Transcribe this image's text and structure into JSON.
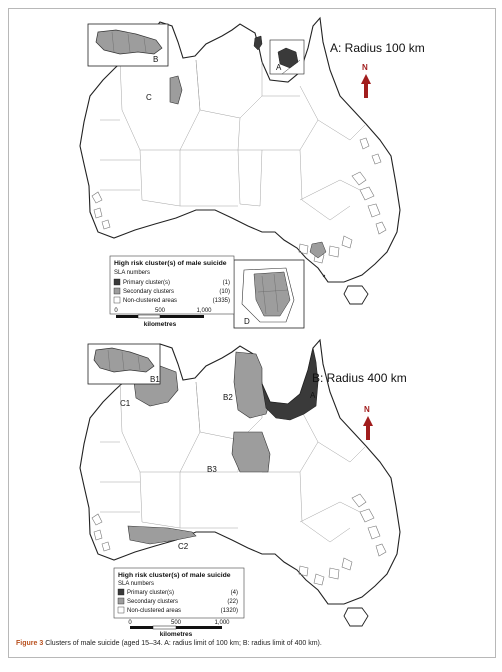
{
  "colors": {
    "primary": "#3a3a3a",
    "secondary": "#9d9d9d",
    "non_clustered": "#ffffff",
    "north_arrow": "#a11d1d",
    "caption_label": "#b8501e",
    "outline": "#333333"
  },
  "caption": {
    "label": "Figure 3",
    "text": "Clusters of male suicide (aged 15–34. A: radius limit of 100 km; B: radius limit of 400 km)."
  },
  "north_label": "N",
  "panels": [
    {
      "title": "A: Radius 100 km",
      "inset_labels": [
        "A",
        "B",
        "C",
        "D"
      ],
      "legend": {
        "title": "High risk cluster(s) of male suicide",
        "subtitle": "SLA numbers",
        "items": [
          {
            "label": "Primary cluster(s)",
            "count": "(1)",
            "swatch": "primary"
          },
          {
            "label": "Secondary clusters",
            "count": "(10)",
            "swatch": "secondary"
          },
          {
            "label": "Non-clustered areas",
            "count": "(1335)",
            "swatch": "non_clustered"
          }
        ]
      },
      "scale": {
        "ticks": [
          "0",
          "500",
          "1,000"
        ],
        "unit": "kilometres"
      }
    },
    {
      "title": "B: Radius 400 km",
      "inset_labels": [
        "A",
        "B1",
        "B2",
        "B3",
        "C1",
        "C2"
      ],
      "legend": {
        "title": "High risk cluster(s) of male suicide",
        "subtitle": "SLA numbers",
        "items": [
          {
            "label": "Primary cluster(s)",
            "count": "(4)",
            "swatch": "primary"
          },
          {
            "label": "Secondary clusters",
            "count": "(22)",
            "swatch": "secondary"
          },
          {
            "label": "Non-clustered areas",
            "count": "(1320)",
            "swatch": "non_clustered"
          }
        ]
      },
      "scale": {
        "ticks": [
          "0",
          "500",
          "1,000"
        ],
        "unit": "kilometres"
      }
    }
  ]
}
